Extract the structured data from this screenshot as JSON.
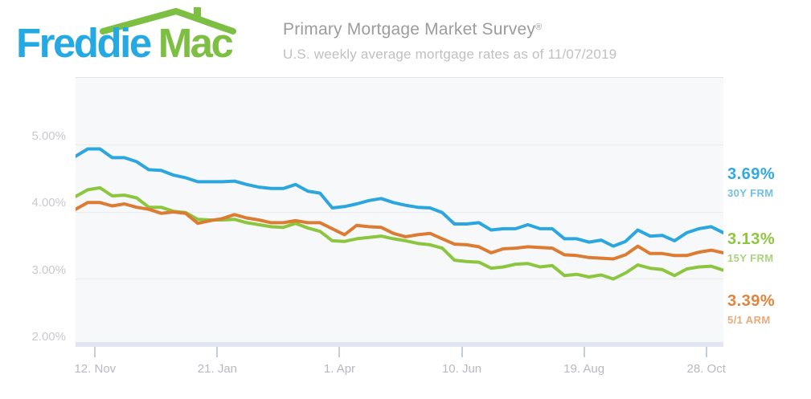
{
  "header": {
    "logo_part1": "Freddie",
    "logo_part2": "Mac",
    "logo_blue": "#25a9e2",
    "logo_green": "#7cbf42",
    "title": "Primary Mortgage Market Survey",
    "title_mark": "®",
    "subtitle": "U.S. weekly average mortgage rates as of 11/07/2019"
  },
  "legend": [
    {
      "value": "3.69%",
      "label": "30Y FRM",
      "value_color": "#2fa9e0",
      "label_color": "#72c0e5"
    },
    {
      "value": "3.13%",
      "label": "15Y FRM",
      "value_color": "#8cc63f",
      "label_color": "#abd37c"
    },
    {
      "value": "3.39%",
      "label": "5/1 ARM",
      "value_color": "#e0853e",
      "label_color": "#e9a979"
    }
  ],
  "chart_data": {
    "type": "line",
    "title": "Primary Mortgage Market Survey",
    "subtitle": "U.S. weekly average mortgage rates as of 11/07/2019",
    "legend_position": "right",
    "grid": true,
    "x_axis": {
      "total_weeks": 53,
      "ticks": [
        {
          "label": "12. Nov",
          "week": 1.6
        },
        {
          "label": "21. Jan",
          "week": 11.6
        },
        {
          "label": "1. Apr",
          "week": 21.6
        },
        {
          "label": "10. Jun",
          "week": 31.6
        },
        {
          "label": "19. Aug",
          "week": 41.6
        },
        {
          "label": "28. Oct",
          "week": 51.6
        }
      ]
    },
    "y_axis": {
      "range": [
        2,
        6
      ],
      "ticks": [
        {
          "label": "5.00%",
          "value": 5
        },
        {
          "label": "4.00%",
          "value": 4
        },
        {
          "label": "3.00%",
          "value": 3
        },
        {
          "label": "2.00%",
          "value": 2
        }
      ]
    },
    "series": [
      {
        "name": "30Y FRM",
        "color": "#2ca6de",
        "final_value": "3.69%",
        "values": [
          4.83,
          4.94,
          4.94,
          4.81,
          4.81,
          4.75,
          4.63,
          4.62,
          4.55,
          4.51,
          4.45,
          4.45,
          4.45,
          4.46,
          4.41,
          4.37,
          4.35,
          4.35,
          4.41,
          4.31,
          4.28,
          4.06,
          4.08,
          4.12,
          4.17,
          4.2,
          4.14,
          4.1,
          4.07,
          4.06,
          3.99,
          3.82,
          3.82,
          3.84,
          3.73,
          3.75,
          3.75,
          3.81,
          3.75,
          3.75,
          3.6,
          3.6,
          3.55,
          3.58,
          3.49,
          3.56,
          3.73,
          3.64,
          3.65,
          3.57,
          3.69,
          3.75,
          3.78,
          3.69
        ]
      },
      {
        "name": "15Y FRM",
        "color": "#8cc63f",
        "final_value": "3.13%",
        "values": [
          4.23,
          4.33,
          4.36,
          4.24,
          4.25,
          4.21,
          4.07,
          4.07,
          4.01,
          3.99,
          3.89,
          3.88,
          3.88,
          3.89,
          3.84,
          3.81,
          3.78,
          3.77,
          3.83,
          3.76,
          3.71,
          3.57,
          3.56,
          3.6,
          3.62,
          3.64,
          3.6,
          3.57,
          3.53,
          3.51,
          3.46,
          3.28,
          3.26,
          3.25,
          3.16,
          3.18,
          3.22,
          3.23,
          3.18,
          3.2,
          3.05,
          3.07,
          3.03,
          3.06,
          3.0,
          3.09,
          3.21,
          3.16,
          3.14,
          3.05,
          3.15,
          3.18,
          3.19,
          3.13
        ]
      },
      {
        "name": "5/1 ARM",
        "color": "#dc7c32",
        "final_value": "3.39%",
        "values": [
          4.04,
          4.14,
          4.14,
          4.09,
          4.12,
          4.07,
          4.04,
          3.98,
          4.0,
          3.98,
          3.83,
          3.87,
          3.9,
          3.96,
          3.91,
          3.88,
          3.84,
          3.84,
          3.87,
          3.84,
          3.84,
          3.75,
          3.66,
          3.8,
          3.78,
          3.77,
          3.68,
          3.63,
          3.66,
          3.68,
          3.6,
          3.52,
          3.51,
          3.48,
          3.39,
          3.45,
          3.46,
          3.48,
          3.47,
          3.46,
          3.36,
          3.35,
          3.32,
          3.31,
          3.3,
          3.36,
          3.49,
          3.38,
          3.38,
          3.35,
          3.35,
          3.4,
          3.43,
          3.39
        ]
      }
    ]
  }
}
